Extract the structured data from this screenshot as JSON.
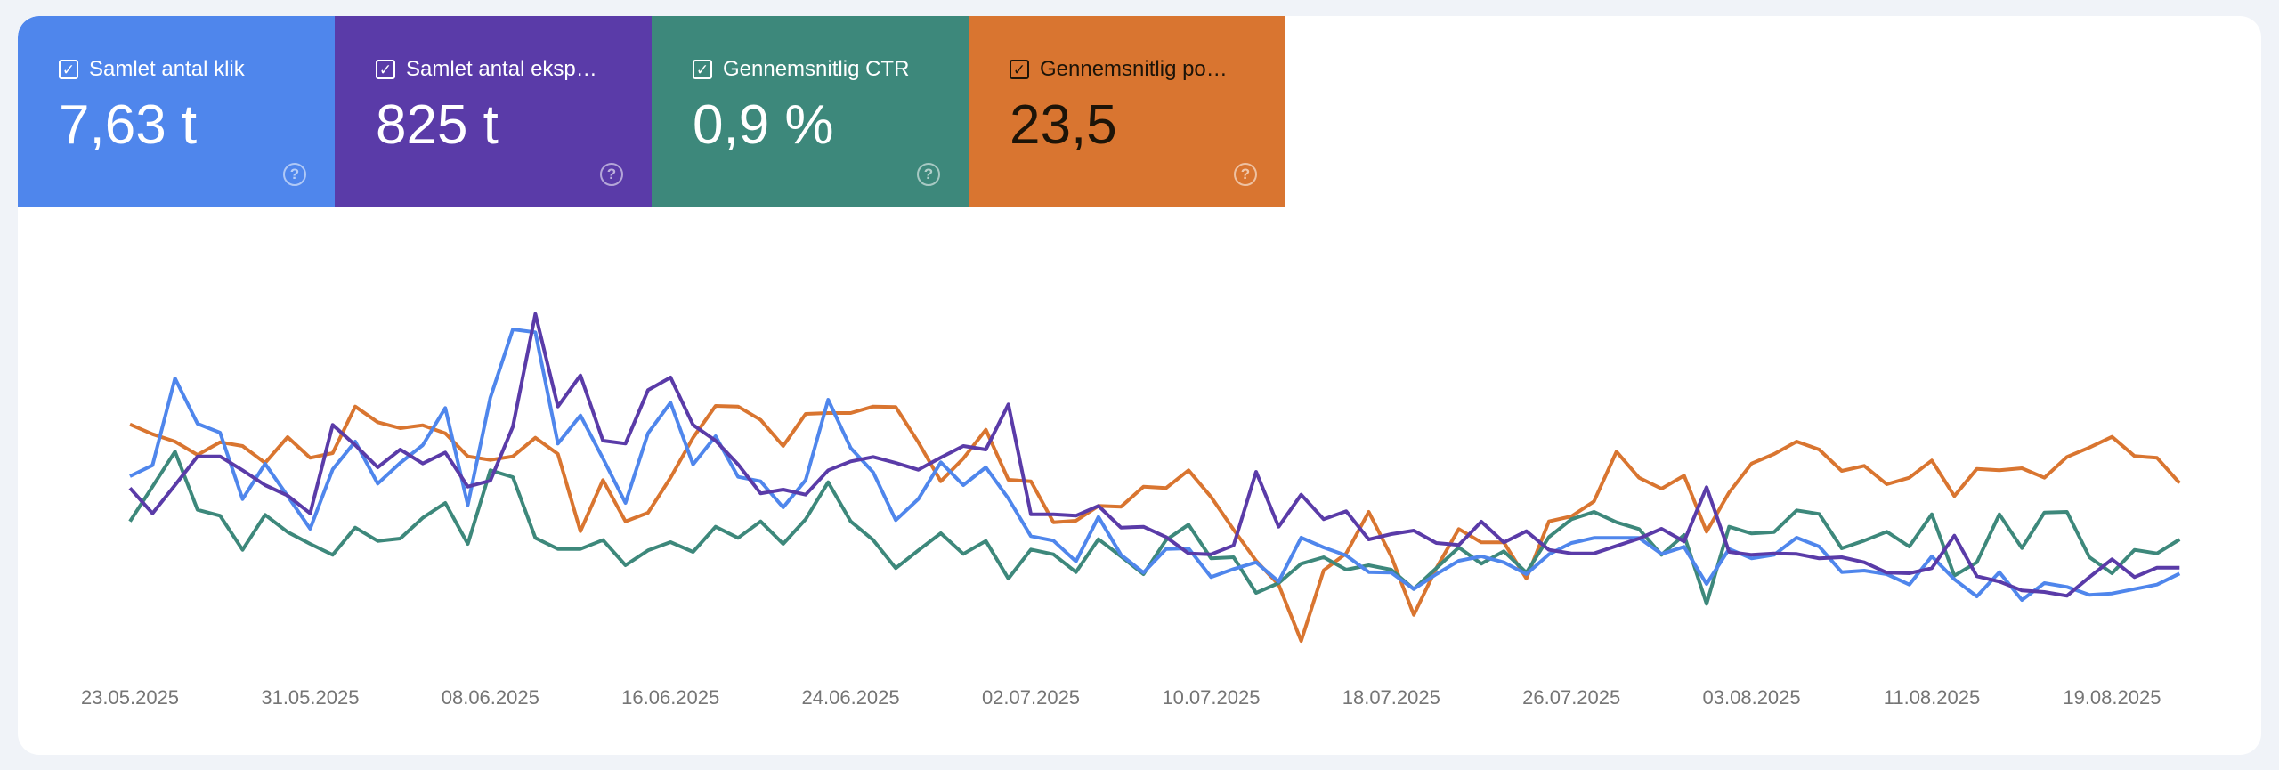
{
  "cards": [
    {
      "label": "Samlet antal klik",
      "value": "7,63 t",
      "color": "#4f86ec",
      "checked": true
    },
    {
      "label": "Samlet antal eksp…",
      "value": "825 t",
      "color": "#5a3ba8",
      "checked": true
    },
    {
      "label": "Gennemsnitlig CTR",
      "value": "0,9 %",
      "color": "#3d887b",
      "checked": true
    },
    {
      "label": "Gennemsnitlig po…",
      "value": "23,5",
      "color": "#d97530",
      "checked": true
    }
  ],
  "icons": {
    "checkbox": "checkbox-checked-icon",
    "help": "help-circle-icon"
  },
  "chart_data": {
    "type": "line",
    "title": "",
    "xlabel": "",
    "ylabel": "",
    "y_units": "relative index (axis hidden, each series independently scaled)",
    "ylim": [
      -150,
      1100
    ],
    "grid": false,
    "legend": "none (metric cards act as legend)",
    "point_count": 92,
    "x_ticks": [
      {
        "index": 0,
        "label": "23.05.2025"
      },
      {
        "index": 8,
        "label": "31.05.2025"
      },
      {
        "index": 16,
        "label": "08.06.2025"
      },
      {
        "index": 24,
        "label": "16.06.2025"
      },
      {
        "index": 32,
        "label": "24.06.2025"
      },
      {
        "index": 40,
        "label": "02.07.2025"
      },
      {
        "index": 48,
        "label": "10.07.2025"
      },
      {
        "index": 56,
        "label": "18.07.2025"
      },
      {
        "index": 64,
        "label": "26.07.2025"
      },
      {
        "index": 72,
        "label": "03.08.2025"
      },
      {
        "index": 80,
        "label": "11.08.2025"
      },
      {
        "index": 88,
        "label": "19.08.2025"
      }
    ],
    "series": [
      {
        "name": "Samlet antal klik",
        "color": "#4f86ec",
        "values": [
          455,
          492,
          785,
          632,
          602,
          378,
          497,
          388,
          278,
          478,
          572,
          430,
          500,
          560,
          685,
          358,
          720,
          950,
          940,
          565,
          660,
          515,
          365,
          600,
          703,
          495,
          590,
          453,
          438,
          350,
          442,
          713,
          550,
          468,
          307,
          378,
          502,
          425,
          485,
          380,
          253,
          238,
          168,
          318,
          190,
          130,
          210,
          212,
          115,
          142,
          165,
          100,
          248,
          215,
          188,
          132,
          130,
          75,
          125,
          170,
          185,
          165,
          125,
          192,
          230,
          247,
          247,
          247,
          193,
          217,
          92,
          210,
          178,
          190,
          248,
          218,
          132,
          137,
          125,
          90,
          185,
          108,
          50,
          132,
          38,
          95,
          82,
          55,
          60,
          75,
          90,
          127
        ]
      },
      {
        "name": "Samlet antal eksponeringer",
        "color": "#5a3ba8",
        "values": [
          415,
          330,
          425,
          522,
          522,
          475,
          425,
          390,
          330,
          628,
          560,
          485,
          545,
          498,
          535,
          420,
          440,
          622,
          1002,
          690,
          795,
          575,
          565,
          745,
          788,
          628,
          575,
          495,
          397,
          410,
          393,
          475,
          505,
          520,
          500,
          477,
          518,
          557,
          545,
          697,
          327,
          327,
          322,
          355,
          282,
          285,
          250,
          195,
          192,
          222,
          470,
          285,
          393,
          310,
          337,
          242,
          260,
          272,
          230,
          223,
          302,
          232,
          270,
          207,
          195,
          195,
          220,
          245,
          278,
          235,
          418,
          200,
          190,
          195,
          193,
          178,
          182,
          165,
          130,
          128,
          145,
          255,
          118,
          100,
          70,
          65,
          52,
          115,
          175,
          115,
          147,
          147
        ]
      },
      {
        "name": "Gennemsnitlig CTR",
        "color": "#3d887b",
        "values": [
          303,
          420,
          538,
          342,
          322,
          207,
          325,
          267,
          227,
          190,
          282,
          237,
          245,
          315,
          365,
          227,
          475,
          452,
          247,
          210,
          210,
          240,
          155,
          205,
          233,
          200,
          285,
          247,
          303,
          227,
          310,
          435,
          303,
          240,
          145,
          205,
          263,
          193,
          237,
          110,
          208,
          192,
          132,
          243,
          185,
          125,
          240,
          292,
          178,
          182,
          62,
          95,
          160,
          182,
          140,
          155,
          140,
          75,
          145,
          215,
          160,
          202,
          130,
          250,
          310,
          335,
          300,
          277,
          190,
          257,
          25,
          285,
          262,
          267,
          340,
          328,
          212,
          238,
          268,
          218,
          327,
          120,
          165,
          327,
          213,
          333,
          335,
          182,
          128,
          207,
          195,
          242
        ]
      },
      {
        "name": "Gennemsnitlig position",
        "color": "#d97530",
        "values": [
          630,
          597,
          572,
          527,
          570,
          557,
          500,
          587,
          517,
          533,
          690,
          637,
          617,
          627,
          600,
          522,
          510,
          522,
          585,
          530,
          270,
          442,
          303,
          332,
          450,
          585,
          692,
          690,
          645,
          557,
          665,
          668,
          668,
          690,
          688,
          570,
          438,
          515,
          612,
          443,
          438,
          300,
          305,
          355,
          352,
          420,
          415,
          475,
          385,
          275,
          170,
          90,
          -100,
          138,
          195,
          335,
          185,
          -12,
          145,
          277,
          232,
          232,
          110,
          303,
          320,
          370,
          538,
          450,
          413,
          457,
          268,
          400,
          498,
          530,
          572,
          545,
          473,
          490,
          428,
          450,
          508,
          388,
          480,
          475,
          482,
          450,
          520,
          552,
          588,
          523,
          517,
          432
        ]
      }
    ]
  }
}
